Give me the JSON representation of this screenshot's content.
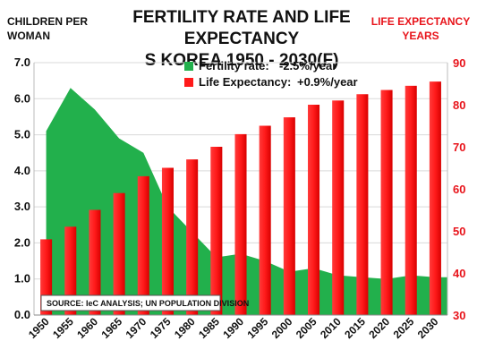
{
  "title_line1": "FERTILITY RATE AND LIFE EXPECTANCY",
  "title_line2": "S KOREA 1950 - 2030(F)",
  "left_axis_label_line1": "CHILDREN PER",
  "left_axis_label_line2": "WOMAN",
  "right_axis_label_line1": "LIFE EXPECTANCY",
  "right_axis_label_line2": "YEARS",
  "source_text": "SOURCE: IeC ANALYSIS; UN POPULATION DIVISION",
  "colors": {
    "fertility": "#22b04c",
    "life": "#ff1a1a",
    "right_axis": "#e8141b"
  },
  "chart_data": {
    "type": "bar",
    "categories": [
      "1950",
      "1955",
      "1960",
      "1965",
      "1970",
      "1975",
      "1980",
      "1985",
      "1990",
      "1995",
      "2000",
      "2005",
      "2010",
      "2015",
      "2020",
      "2025",
      "2030"
    ],
    "series": [
      {
        "name": "Fertility rate:",
        "note": "-2.5%/year",
        "type": "area",
        "axis": "left",
        "values": [
          5.1,
          6.3,
          5.7,
          4.9,
          4.5,
          3.0,
          2.3,
          1.6,
          1.7,
          1.5,
          1.2,
          1.3,
          1.1,
          1.05,
          1.0,
          1.1,
          1.05
        ]
      },
      {
        "name": "Life Expectancy:",
        "note": "+0.9%/year",
        "type": "bar",
        "axis": "right",
        "values": [
          48,
          51,
          55,
          59,
          63,
          65,
          67,
          70,
          73,
          75,
          77,
          80,
          81,
          82.5,
          83.5,
          84.5,
          85.5
        ]
      }
    ],
    "y_left": {
      "lim": [
        0,
        7
      ],
      "ticks": [
        "0.0",
        "1.0",
        "2.0",
        "3.0",
        "4.0",
        "5.0",
        "6.0",
        "7.0"
      ]
    },
    "y_right": {
      "lim": [
        30,
        90
      ],
      "ticks": [
        "30",
        "40",
        "50",
        "60",
        "70",
        "80",
        "90"
      ]
    },
    "grid": true,
    "legend": "top-center"
  }
}
